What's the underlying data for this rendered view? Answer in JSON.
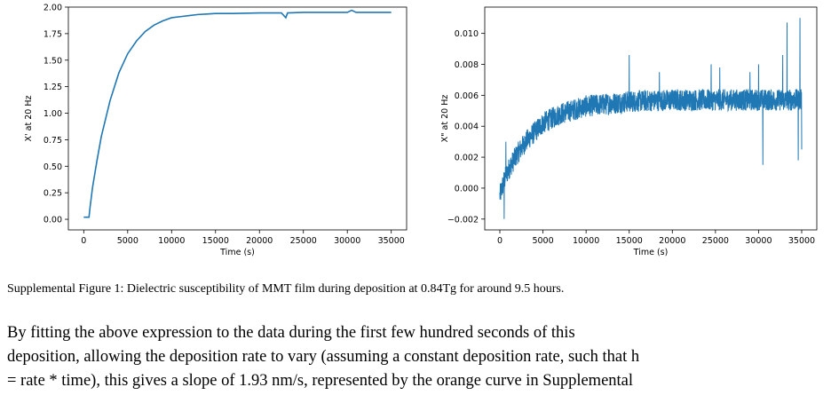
{
  "chart_data": [
    {
      "type": "line",
      "xlabel": "Time (s)",
      "ylabel": "X' at 20 Hz",
      "xlim": [
        -1750,
        36750
      ],
      "ylim": [
        -0.1,
        2.0
      ],
      "xticks": [
        0,
        5000,
        10000,
        15000,
        20000,
        25000,
        30000,
        35000
      ],
      "xtick_labels": [
        "0",
        "5000",
        "10000",
        "15000",
        "20000",
        "25000",
        "30000",
        "35000"
      ],
      "yticks": [
        0.0,
        0.25,
        0.5,
        0.75,
        1.0,
        1.25,
        1.5,
        1.75,
        2.0
      ],
      "ytick_labels": [
        "0.00",
        "0.25",
        "0.50",
        "0.75",
        "1.00",
        "1.25",
        "1.50",
        "1.75",
        "2.00"
      ],
      "grid": false,
      "color": "#1f77b4",
      "series": [
        {
          "x": [
            0,
            300,
            600,
            700,
            1000,
            1500,
            2000,
            3000,
            4000,
            5000,
            6000,
            7000,
            8000,
            9000,
            10000,
            11000,
            12000,
            13000,
            14000,
            15000,
            17000,
            20000,
            22500,
            23000,
            23200,
            25000,
            28000,
            30000,
            30500,
            31000,
            33000,
            35000
          ],
          "y": [
            0.02,
            0.02,
            0.02,
            0.1,
            0.3,
            0.55,
            0.78,
            1.12,
            1.38,
            1.56,
            1.68,
            1.77,
            1.83,
            1.87,
            1.9,
            1.91,
            1.92,
            1.93,
            1.935,
            1.94,
            1.94,
            1.945,
            1.945,
            1.9,
            1.945,
            1.95,
            1.95,
            1.95,
            1.97,
            1.95,
            1.95,
            1.95
          ]
        }
      ]
    },
    {
      "type": "line",
      "xlabel": "Time (s)",
      "ylabel": "X\" at 20 Hz",
      "xlim": [
        -1750,
        36750
      ],
      "ylim": [
        -0.0027,
        0.0117
      ],
      "xticks": [
        0,
        5000,
        10000,
        15000,
        20000,
        25000,
        30000,
        35000
      ],
      "xtick_labels": [
        "0",
        "5000",
        "10000",
        "15000",
        "20000",
        "25000",
        "30000",
        "35000"
      ],
      "yticks": [
        -0.002,
        0.0,
        0.002,
        0.004,
        0.006,
        0.008,
        0.01
      ],
      "ytick_labels": [
        "−0.002",
        "0.000",
        "0.002",
        "0.004",
        "0.006",
        "0.008",
        "0.010"
      ],
      "grid": false,
      "color": "#1f77b4",
      "series": [
        {
          "trend_x": [
            0,
            500,
            1000,
            2000,
            3000,
            5000,
            7000,
            10000,
            15000,
            20000,
            25000,
            30000,
            35000
          ],
          "trend_y": [
            -0.0005,
            0.0005,
            0.0012,
            0.0022,
            0.003,
            0.0042,
            0.0048,
            0.0053,
            0.0056,
            0.0057,
            0.0057,
            0.0057,
            0.0057
          ],
          "noise_amplitude": 0.0007,
          "spikes": [
            {
              "x": 500,
              "y": -0.002
            },
            {
              "x": 700,
              "y": 0.003
            },
            {
              "x": 15000,
              "y": 0.0086
            },
            {
              "x": 18500,
              "y": 0.0075
            },
            {
              "x": 24500,
              "y": 0.008
            },
            {
              "x": 25500,
              "y": 0.0078
            },
            {
              "x": 29000,
              "y": 0.0075
            },
            {
              "x": 30000,
              "y": 0.008
            },
            {
              "x": 30500,
              "y": 0.0015
            },
            {
              "x": 32800,
              "y": 0.0086
            },
            {
              "x": 33300,
              "y": 0.0107
            },
            {
              "x": 34600,
              "y": 0.0018
            },
            {
              "x": 34800,
              "y": 0.011
            },
            {
              "x": 35000,
              "y": 0.0025
            }
          ]
        }
      ]
    }
  ],
  "caption": "Supplemental Figure 1: Dielectric susceptibility of MMT film during deposition at 0.84Tg for around 9.5 hours.",
  "body_lines": [
    "By fitting the above expression to the data during the first few hundred seconds of this",
    "deposition, allowing the deposition rate to vary (assuming a constant deposition rate, such that h",
    "= rate * time), this gives a slope of 1.93 nm/s, represented by the orange curve in Supplemental"
  ]
}
